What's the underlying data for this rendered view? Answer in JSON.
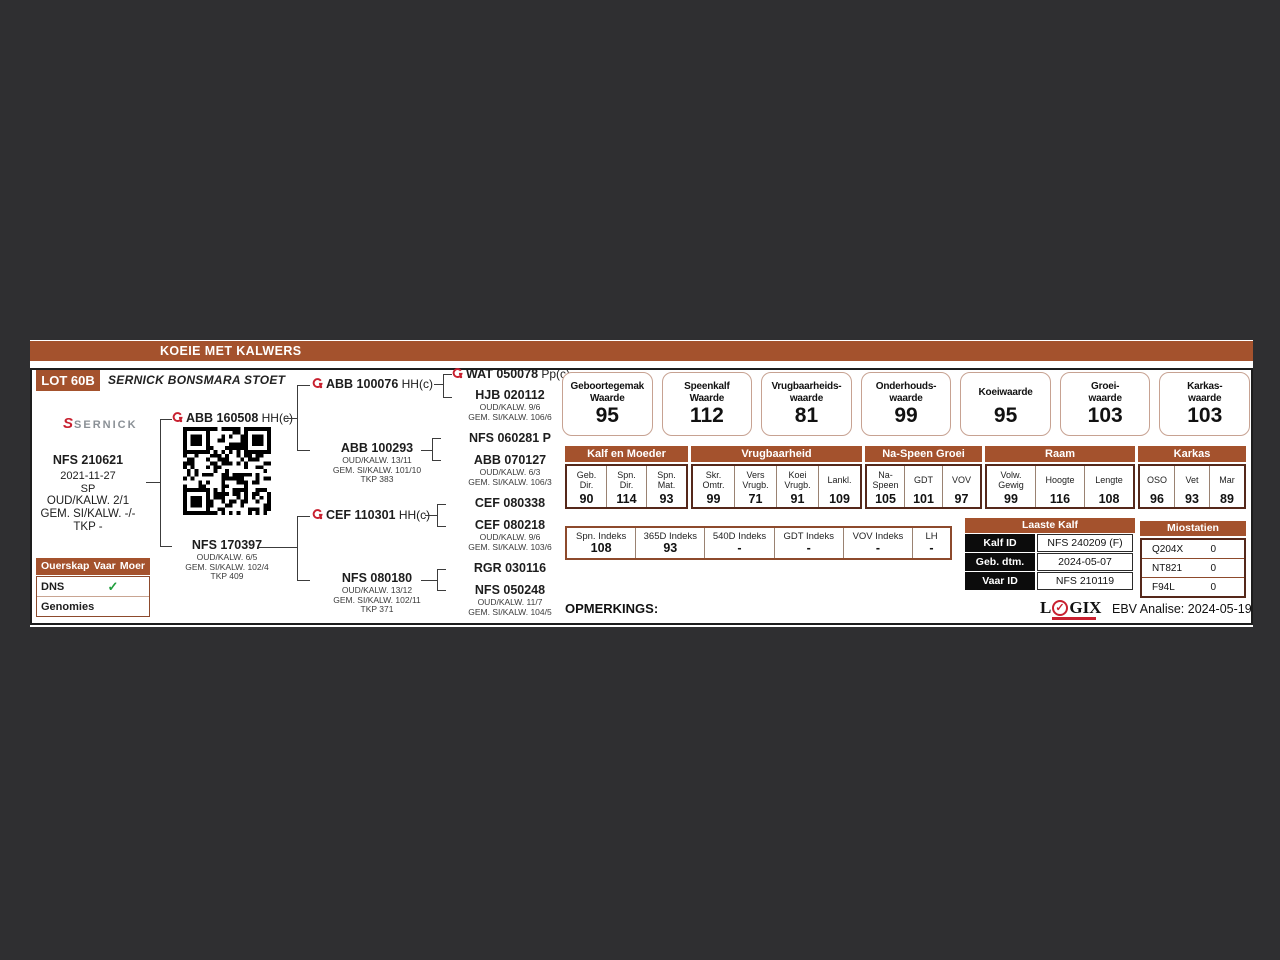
{
  "header": {
    "title": "KOEIE MET KALWERS"
  },
  "lot": {
    "number": "LOT 60B",
    "stud": "SERNICK BONSMARA STOET"
  },
  "brand": {
    "sernick_s": "S",
    "sernick_name": "SERNICK"
  },
  "animal": {
    "id": "NFS 210621",
    "birth_date": "2021-11-27",
    "status": "SP",
    "oud_kalw": "OUD/KALW. 2/1",
    "gem_si_kalw": "GEM. SI/KALW. -/-",
    "tkp": "TKP -"
  },
  "parentage": {
    "col1": "Ouerskap",
    "col2": "Vaar",
    "col3": "Moer",
    "rows": [
      {
        "label": "DNS",
        "vaar": "✓",
        "moer": ""
      },
      {
        "label": "Genomies",
        "vaar": "",
        "moer": ""
      }
    ]
  },
  "pedigree": {
    "sire": {
      "id": "ABB 160508",
      "hp": "HH(c)"
    },
    "dam": {
      "id": "NFS 170397",
      "sub1": "OUD/KALW. 6/5",
      "sub2": "GEM. SI/KALW. 102/4",
      "sub3": "TKP 409"
    },
    "ss": {
      "id": "ABB 100076",
      "hp": "HH(c)"
    },
    "sd": {
      "id": "ABB 100293",
      "sub1": "OUD/KALW. 13/11",
      "sub2": "GEM. SI/KALW. 101/10",
      "sub3": "TKP 383"
    },
    "ds": {
      "id": "CEF 110301",
      "hp": "HH(c)"
    },
    "dd": {
      "id": "NFS 080180",
      "sub1": "OUD/KALW. 13/12",
      "sub2": "GEM. SI/KALW. 102/11",
      "sub3": "TKP 371"
    },
    "sss": {
      "id": "WAT 050078",
      "hp": "Pp(c)"
    },
    "ssd": {
      "id": "HJB 020112",
      "sub1": "OUD/KALW. 9/6",
      "sub2": "GEM. SI/KALW. 106/6"
    },
    "sds": {
      "id": "NFS 060281 P"
    },
    "sdd": {
      "id": "ABB 070127",
      "sub1": "OUD/KALW. 6/3",
      "sub2": "GEM. SI/KALW. 106/3"
    },
    "dss": {
      "id": "CEF 080338"
    },
    "dsd": {
      "id": "CEF 080218",
      "sub1": "OUD/KALW. 9/6",
      "sub2": "GEM. SI/KALW. 103/6"
    },
    "dds": {
      "id": "RGR 030116"
    },
    "ddd": {
      "id": "NFS 050248",
      "sub1": "OUD/KALW. 11/7",
      "sub2": "GEM. SI/KALW. 104/5"
    }
  },
  "ebv_boxes": [
    {
      "l1": "Geboortegemak",
      "l2": "Waarde",
      "value": "95"
    },
    {
      "l1": "Speenkalf",
      "l2": "Waarde",
      "value": "112"
    },
    {
      "l1": "Vrugbaarheids-",
      "l2": "waarde",
      "value": "81"
    },
    {
      "l1": "Onderhouds-",
      "l2": "waarde",
      "value": "99"
    },
    {
      "l1": "Koeiwaarde",
      "l2": "",
      "value": "95"
    },
    {
      "l1": "Groei-",
      "l2": "waarde",
      "value": "103"
    },
    {
      "l1": "Karkas-",
      "l2": "waarde",
      "value": "103"
    }
  ],
  "traits": {
    "groups": [
      {
        "name": "Kalf en Moeder",
        "cols": [
          {
            "l1": "Geb.",
            "l2": "Dir.",
            "v": "90"
          },
          {
            "l1": "Spn.",
            "l2": "Dir.",
            "v": "114"
          },
          {
            "l1": "Spn.",
            "l2": "Mat.",
            "v": "93"
          }
        ]
      },
      {
        "name": "Vrugbaarheid",
        "cols": [
          {
            "l1": "Skr.",
            "l2": "Omtr.",
            "v": "99"
          },
          {
            "l1": "Vers",
            "l2": "Vrugb.",
            "v": "71"
          },
          {
            "l1": "Koei",
            "l2": "Vrugb.",
            "v": "91"
          },
          {
            "l1": "Lankl.",
            "l2": "",
            "v": "109"
          }
        ]
      },
      {
        "name": "Na-Speen Groei",
        "cols": [
          {
            "l1": "Na-",
            "l2": "Speen",
            "v": "105"
          },
          {
            "l1": "GDT",
            "l2": "",
            "v": "101"
          },
          {
            "l1": "VOV",
            "l2": "",
            "v": "97"
          }
        ]
      },
      {
        "name": "Raam",
        "cols": [
          {
            "l1": "Volw.",
            "l2": "Gewig",
            "v": "99"
          },
          {
            "l1": "Hoogte",
            "l2": "",
            "v": "116"
          },
          {
            "l1": "Lengte",
            "l2": "",
            "v": "108"
          }
        ]
      },
      {
        "name": "Karkas",
        "cols": [
          {
            "l1": "OSO",
            "l2": "",
            "v": "96"
          },
          {
            "l1": "Vet",
            "l2": "",
            "v": "93"
          },
          {
            "l1": "Mar",
            "l2": "",
            "v": "89"
          }
        ]
      }
    ]
  },
  "index_table": [
    {
      "label": "Spn. Indeks",
      "value": "108"
    },
    {
      "label": "365D Indeks",
      "value": "93"
    },
    {
      "label": "540D Indeks",
      "value": "-"
    },
    {
      "label": "GDT Indeks",
      "value": "-"
    },
    {
      "label": "VOV Indeks",
      "value": "-"
    },
    {
      "label": "LH",
      "value": "-"
    }
  ],
  "laaste_kalf": {
    "title": "Laaste Kalf",
    "rows": [
      {
        "label": "Kalf ID",
        "value": "NFS 240209 (F)"
      },
      {
        "label": "Geb. dtm.",
        "value": "2024-05-07"
      },
      {
        "label": "Vaar ID",
        "value": "NFS 210119"
      }
    ]
  },
  "miostatien": {
    "title": "Miostatien",
    "rows": [
      {
        "label": "Q204X",
        "value": "0"
      },
      {
        "label": "NT821",
        "value": "0"
      },
      {
        "label": "F94L",
        "value": "0"
      }
    ]
  },
  "footer": {
    "opmerkings_label": "OPMERKINGS:",
    "logix_l": "L",
    "logix_o_check": "✓",
    "logix_gix": "GIX",
    "ebv_analise": "EBV Analise: 2024-05-19"
  },
  "colors": {
    "accent_brown": "#a4522d",
    "logo_red": "#c8202f",
    "check_green": "#1f9e3c"
  }
}
